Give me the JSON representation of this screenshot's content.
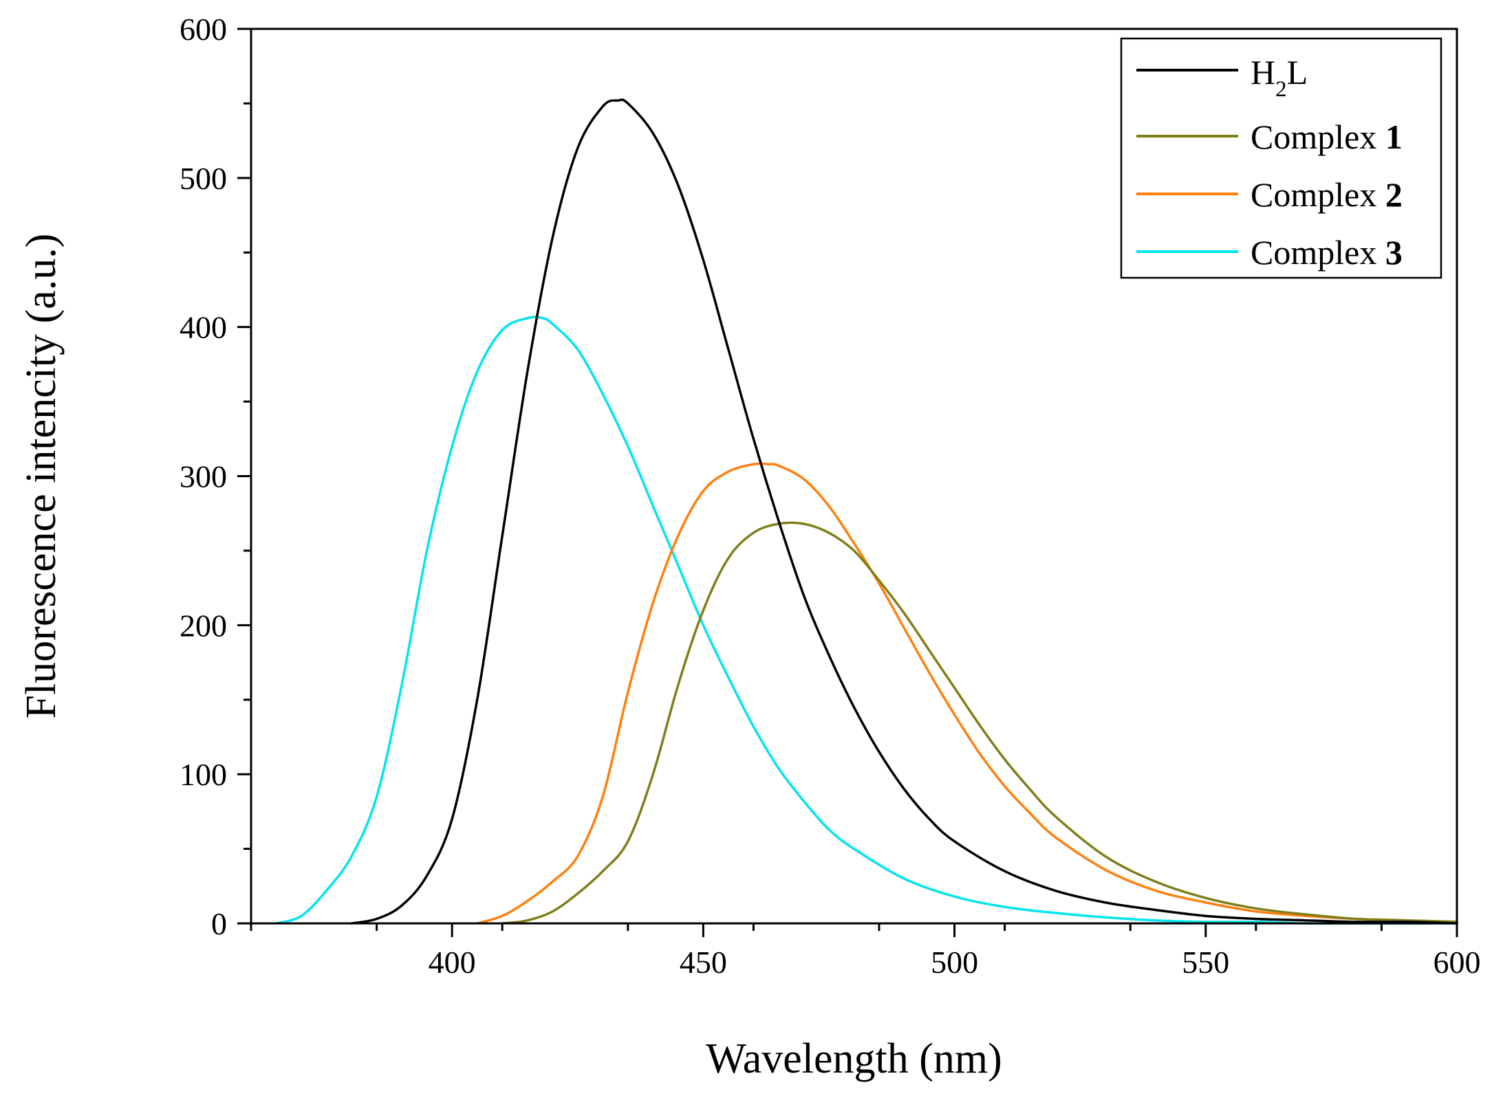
{
  "chart_data": {
    "type": "line",
    "title": "",
    "xlabel": "Wavelength (nm)",
    "ylabel": "Fluorescence intencity (a.u.)",
    "xlim": [
      360,
      600
    ],
    "ylim": [
      0,
      600
    ],
    "xticks": [
      400,
      450,
      500,
      550,
      600
    ],
    "yticks": [
      0,
      100,
      200,
      300,
      400,
      500,
      600
    ],
    "xticks_label": [
      "400",
      "450",
      "500",
      "550",
      "600"
    ],
    "yticks_label": [
      "0",
      "100",
      "200",
      "300",
      "400",
      "500",
      "600"
    ],
    "grid": false,
    "legend_position": "top-right",
    "series": [
      {
        "name": "H2L",
        "legend_main": "H",
        "legend_sub": "2",
        "legend_tail": "L",
        "legend_bold": "",
        "color": "#000000",
        "x": [
          380,
          385,
          390,
          395,
          400,
          405,
          410,
          415,
          420,
          425,
          430,
          433,
          435,
          440,
          445,
          450,
          455,
          460,
          465,
          470,
          475,
          480,
          485,
          490,
          495,
          500,
          510,
          520,
          530,
          540,
          550,
          560,
          570,
          580,
          590,
          600
        ],
        "y": [
          0,
          3,
          12,
          32,
          70,
          150,
          260,
          370,
          460,
          520,
          548,
          552,
          550,
          530,
          495,
          445,
          385,
          325,
          270,
          220,
          180,
          145,
          115,
          90,
          70,
          55,
          35,
          22,
          14,
          9,
          5,
          3,
          2,
          1,
          1,
          0
        ]
      },
      {
        "name": "Complex 1",
        "legend_main": "Complex ",
        "legend_sub": "",
        "legend_tail": "",
        "legend_bold": "1",
        "color": "#7f7f1a",
        "x": [
          410,
          415,
          420,
          425,
          430,
          435,
          440,
          445,
          450,
          455,
          460,
          465,
          470,
          475,
          480,
          485,
          490,
          495,
          500,
          505,
          510,
          515,
          520,
          530,
          540,
          550,
          560,
          570,
          580,
          590,
          600
        ],
        "y": [
          0,
          2,
          8,
          20,
          35,
          55,
          100,
          160,
          210,
          245,
          262,
          268,
          268,
          262,
          250,
          230,
          208,
          183,
          158,
          133,
          110,
          90,
          72,
          45,
          28,
          17,
          10,
          6,
          3,
          2,
          1
        ]
      },
      {
        "name": "Complex 2",
        "legend_main": "Complex ",
        "legend_sub": "",
        "legend_tail": "",
        "legend_bold": "2",
        "color": "#ff7f0e",
        "x": [
          405,
          410,
          415,
          420,
          425,
          430,
          435,
          440,
          445,
          450,
          455,
          460,
          463,
          465,
          470,
          475,
          480,
          485,
          490,
          495,
          500,
          505,
          510,
          515,
          520,
          530,
          540,
          550,
          560,
          570,
          580,
          590,
          600
        ],
        "y": [
          0,
          5,
          15,
          28,
          45,
          85,
          155,
          215,
          260,
          290,
          303,
          308,
          308,
          307,
          298,
          280,
          255,
          228,
          198,
          168,
          140,
          114,
          92,
          74,
          58,
          36,
          22,
          14,
          8,
          5,
          3,
          2,
          1
        ]
      },
      {
        "name": "Complex 3",
        "legend_main": "Complex ",
        "legend_sub": "",
        "legend_tail": "",
        "legend_bold": "3",
        "color": "#00e5ee",
        "x": [
          365,
          370,
          375,
          380,
          385,
          390,
          395,
          400,
          405,
          410,
          415,
          418,
          420,
          425,
          430,
          435,
          440,
          445,
          450,
          455,
          460,
          465,
          470,
          475,
          480,
          490,
          500,
          510,
          520,
          530,
          540,
          550,
          560,
          570,
          580,
          600
        ],
        "y": [
          0,
          5,
          22,
          45,
          85,
          160,
          250,
          320,
          370,
          398,
          406,
          406,
          402,
          385,
          355,
          320,
          280,
          240,
          200,
          165,
          132,
          104,
          82,
          63,
          50,
          30,
          18,
          11,
          7,
          4,
          2,
          1,
          1,
          0,
          0,
          0
        ]
      }
    ]
  }
}
